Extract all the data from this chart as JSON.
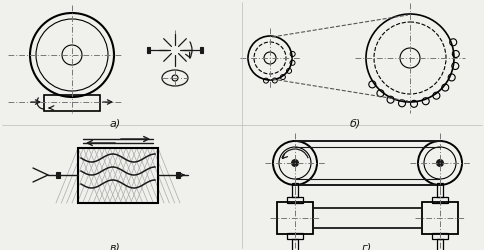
{
  "bg_color": "#f0f0ec",
  "line_color": "#1a1a1a",
  "dash_color": "#555555",
  "label_a": "а)",
  "label_b": "б)",
  "label_v": "в)",
  "label_g": "г)",
  "fig_width": 4.84,
  "fig_height": 2.5,
  "dpi": 100
}
